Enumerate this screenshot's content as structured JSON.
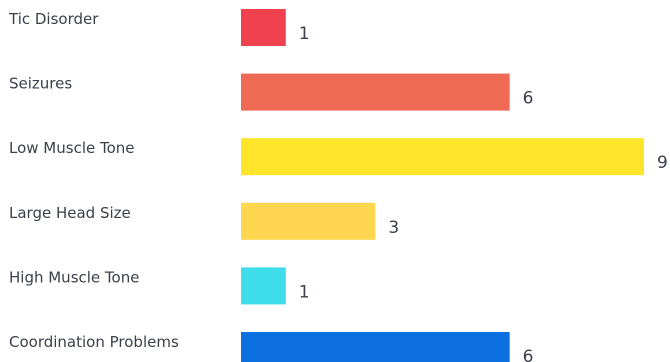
{
  "chart_data": {
    "type": "bar",
    "orientation": "horizontal",
    "categories": [
      "Tic Disorder",
      "Seizures",
      "Low Muscle Tone",
      "Large Head Size",
      "High Muscle Tone",
      "Coordination Problems"
    ],
    "values": [
      1,
      6,
      9,
      3,
      1,
      6
    ],
    "value_labels": [
      "1",
      "6",
      "9",
      "3",
      "1",
      "6"
    ],
    "colors": [
      "#f0414f",
      "#ef6a55",
      "#fee52a",
      "#fed650",
      "#3edde9",
      "#0b6fdf"
    ],
    "title": "",
    "xlabel": "",
    "ylabel": "",
    "xlim": [
      0,
      9
    ],
    "grid": false,
    "legend": "none"
  }
}
